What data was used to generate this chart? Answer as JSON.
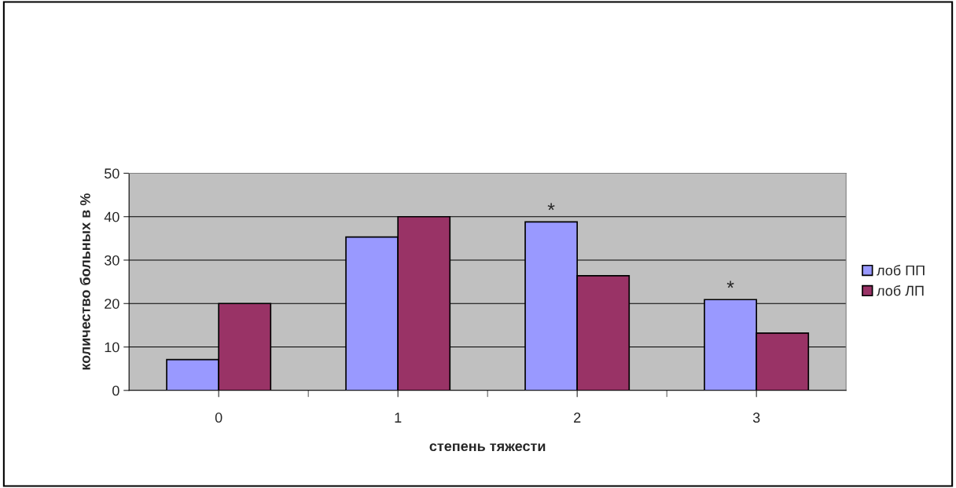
{
  "chart_data": {
    "type": "bar",
    "xlabel": "степень тяжести",
    "ylabel": "количество больных в %",
    "categories": [
      "0",
      "1",
      "2",
      "3"
    ],
    "series": [
      {
        "name": "лоб ПП",
        "color": "#9999ff",
        "values": [
          7.1,
          35.3,
          38.8,
          20.9
        ]
      },
      {
        "name": "лоб ЛП",
        "color": "#993366",
        "values": [
          20,
          40,
          26.4,
          13.2
        ]
      }
    ],
    "ylim": [
      0,
      50
    ],
    "yticks": [
      0,
      10,
      20,
      30,
      40,
      50
    ],
    "grid": "y",
    "legend": "right",
    "annotations": [
      {
        "text": "*",
        "x": "2",
        "y": 38.8
      },
      {
        "text": "*",
        "x": "3",
        "y": 20.9
      }
    ]
  }
}
